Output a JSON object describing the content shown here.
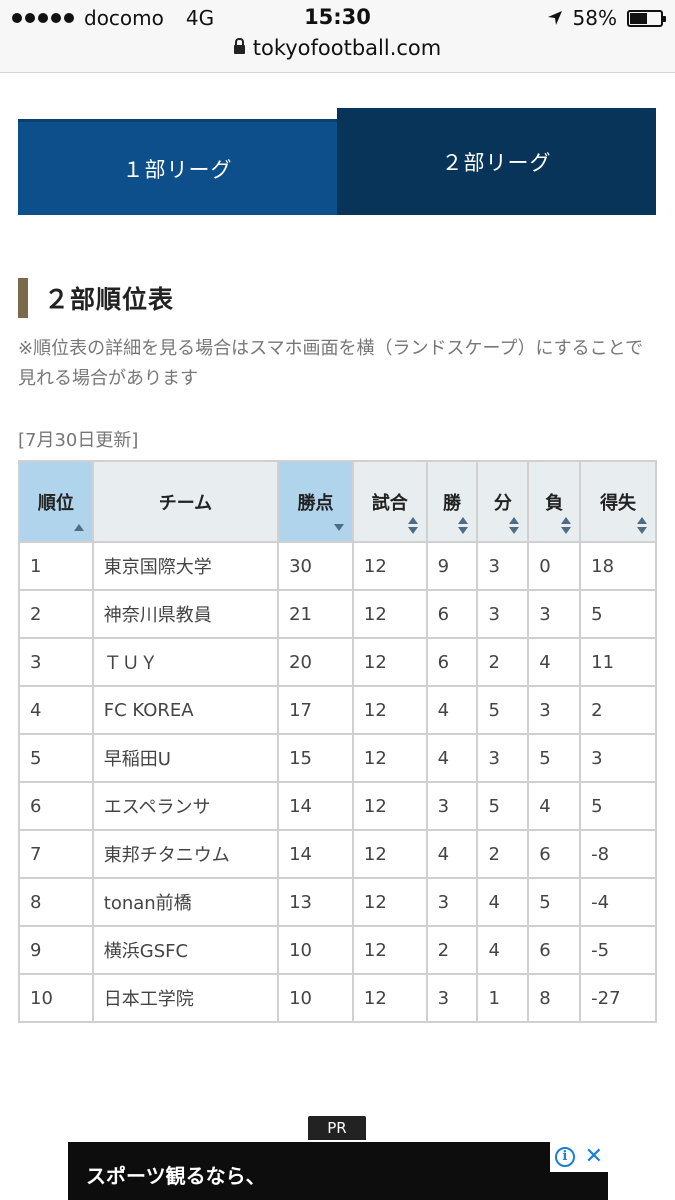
{
  "status_bar": {
    "carrier": "docomo",
    "network": "4G",
    "time": "15:30",
    "battery": "58%",
    "battery_level": 0.58,
    "url": "tokyofootball.com"
  },
  "tabs": [
    {
      "label": "１部リーグ"
    },
    {
      "label": "２部リーグ"
    }
  ],
  "section": {
    "title": "２部順位表",
    "note": "※順位表の詳細を見る場合はスマホ画面を横（ランドスケープ）にすることで見れる場合があります",
    "updated": "[7月30日更新]"
  },
  "table": {
    "headers": [
      "順位",
      "チーム",
      "勝点",
      "試合",
      "勝",
      "分",
      "負",
      "得失"
    ],
    "rows": [
      [
        "1",
        "東京国際大学",
        "30",
        "12",
        "9",
        "3",
        "0",
        "18"
      ],
      [
        "2",
        "神奈川県教員",
        "21",
        "12",
        "6",
        "3",
        "3",
        "5"
      ],
      [
        "3",
        "ＴＵＹ",
        "20",
        "12",
        "6",
        "2",
        "4",
        "11"
      ],
      [
        "4",
        "FC KOREA",
        "17",
        "12",
        "4",
        "5",
        "3",
        "2"
      ],
      [
        "5",
        "早稲田U",
        "15",
        "12",
        "4",
        "3",
        "5",
        "3"
      ],
      [
        "6",
        "エスペランサ",
        "14",
        "12",
        "3",
        "5",
        "4",
        "5"
      ],
      [
        "7",
        "東邦チタニウム",
        "14",
        "12",
        "4",
        "2",
        "6",
        "-8"
      ],
      [
        "8",
        "tonan前橋",
        "13",
        "12",
        "3",
        "4",
        "5",
        "-4"
      ],
      [
        "9",
        "横浜GSFC",
        "10",
        "12",
        "2",
        "4",
        "6",
        "-5"
      ],
      [
        "10",
        "日本工学院",
        "10",
        "12",
        "3",
        "1",
        "8",
        "-27"
      ]
    ]
  },
  "ad": {
    "badge": "PR",
    "text": "スポーツ観るなら、"
  },
  "colors": {
    "tab_inactive": "#0c4f8b",
    "tab_active": "#073458",
    "heading_accent": "#7a6a4a",
    "sorted_header": "#b1d4ed",
    "header": "#e8eef0"
  }
}
